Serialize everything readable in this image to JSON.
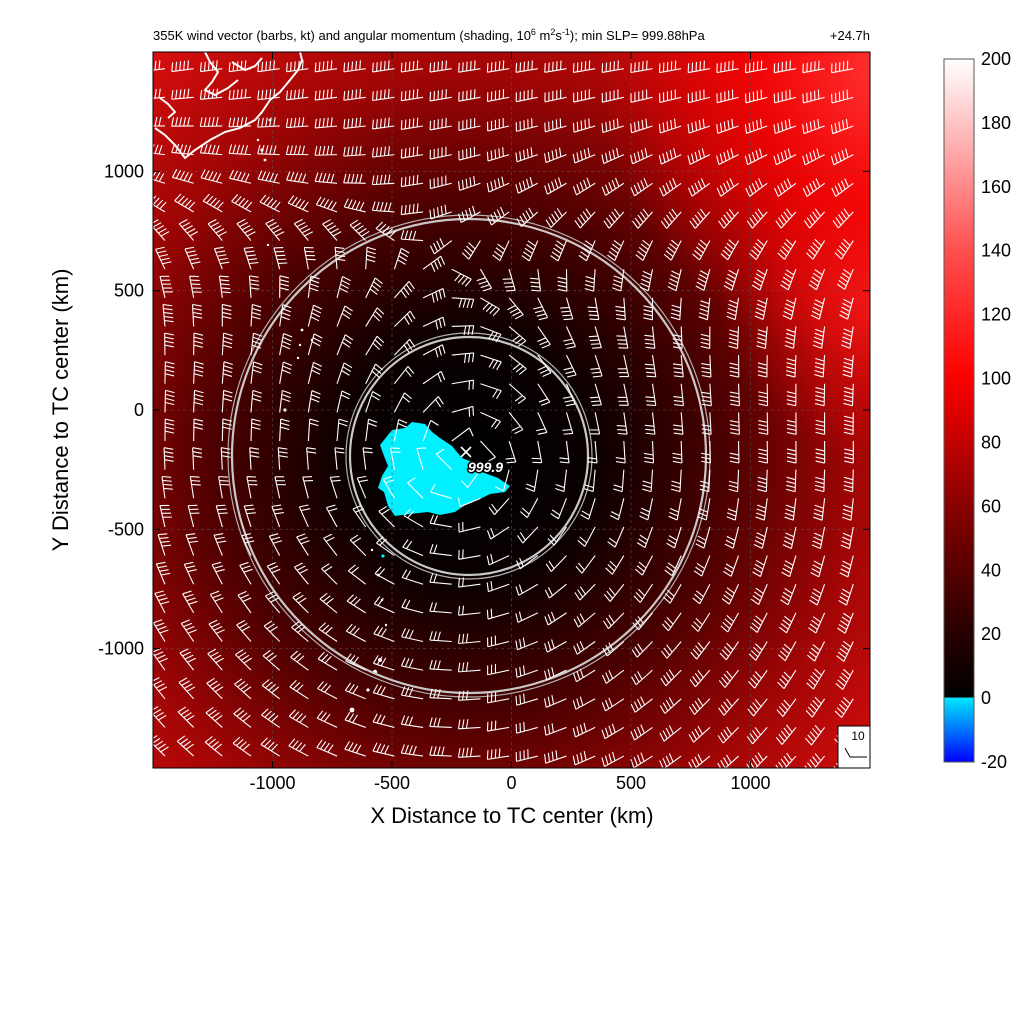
{
  "chart_data": {
    "type": "heatmap",
    "title_main": "355K wind vector (barbs, kt) and angular momentum (shading, 10",
    "title_exp1": "6",
    "title_mid1": " m",
    "title_exp2": "2",
    "title_mid2": "s",
    "title_exp3": "-1",
    "title_end": "); min SLP= 999.88hPa",
    "time_label": "+24.7h",
    "xlabel": "X Distance to TC center (km)",
    "ylabel": "Y Distance to TC center (km)",
    "xlim": [
      -1500,
      1500
    ],
    "ylim": [
      -1500,
      1500
    ],
    "x_ticks": [
      -1000,
      -500,
      0,
      500,
      1000
    ],
    "y_ticks": [
      -1000,
      -500,
      0,
      500,
      1000
    ],
    "x_tick_labels": [
      "-1000",
      "-500",
      "0",
      "500",
      "1000"
    ],
    "y_tick_labels": [
      "-1000",
      "-500",
      "0",
      "500",
      "1000"
    ],
    "grid": true,
    "colorbar": {
      "min": -20,
      "max": 200,
      "ticks": [
        -20,
        0,
        20,
        40,
        60,
        80,
        100,
        120,
        140,
        160,
        180,
        200
      ],
      "tick_labels": [
        "-20",
        "0",
        "20",
        "40",
        "60",
        "80",
        "100",
        "120",
        "140",
        "160",
        "180",
        "200"
      ],
      "colors": [
        "#0000ff",
        "#00e5ff",
        "#000000",
        "#ff0000",
        "#ffffff"
      ]
    },
    "center_marker": {
      "x": -200,
      "y": -200,
      "label": "999.9"
    },
    "rings_km": [
      500,
      1000
    ],
    "reference_barb": {
      "label": "10",
      "speed_kt": 10
    },
    "colors": {
      "low": "#000000",
      "mid": "#8b0000",
      "high": "#ff0000",
      "max": "#ffffff",
      "negative": "#00ffff"
    }
  }
}
